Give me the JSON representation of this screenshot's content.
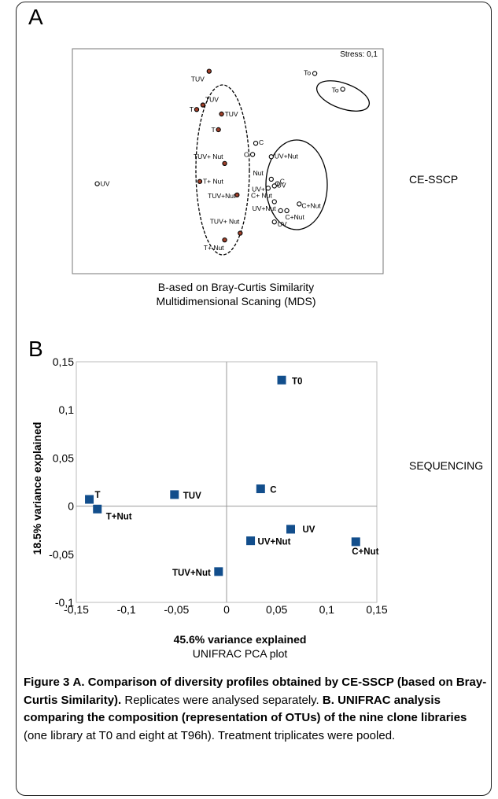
{
  "panel_a": {
    "label": "A",
    "stress": "Stress: 0,1",
    "side_label": "CE-SSCP",
    "caption_line1": "B-ased on Bray-Curtis Similarity",
    "caption_line2": "Multidimensional Scaning (MDS)"
  },
  "panel_b": {
    "label": "B",
    "side_label": "SEQUENCING",
    "xlabel": "45.6% variance explained",
    "ylabel": "18.5% variance explained",
    "subtitle": "UNIFRAC PCA plot"
  },
  "caption": {
    "fig_num": "Figure 3",
    "part1_bold": "A. Comparison of diversity profiles obtained by CE-SSCP (based on Bray-Curtis Similarity).",
    "part2": " Replicates were analysed separately. ",
    "part3_bold": "B. UNIFRAC analysis comparing the composition (representation of OTUs) of the nine clone libraries",
    "part4": " (one library at T0 and eight at T96h). Treatment triplicates were pooled."
  },
  "chart_data": [
    {
      "type": "scatter",
      "title": "",
      "annotation": "Stress: 0,1",
      "xlabel": "",
      "ylabel": "",
      "xlim": [
        0,
        100
      ],
      "ylim": [
        0,
        100
      ],
      "marker_colors": {
        "treated": "#a0402a",
        "control": "#ffffff"
      },
      "points": [
        {
          "label": "UV",
          "x": 8,
          "y": 40,
          "group": "control"
        },
        {
          "label": "To",
          "x": 78,
          "y": 89,
          "group": "control"
        },
        {
          "label": "To",
          "x": 87,
          "y": 82,
          "group": "control"
        },
        {
          "label": "TUV",
          "x": 44,
          "y": 90,
          "group": "treated"
        },
        {
          "label": "TUV",
          "x": 42,
          "y": 75,
          "group": "treated"
        },
        {
          "label": "T",
          "x": 40,
          "y": 73,
          "group": "treated"
        },
        {
          "label": "TUV",
          "x": 48,
          "y": 71,
          "group": "treated"
        },
        {
          "label": "T",
          "x": 47,
          "y": 64,
          "group": "treated"
        },
        {
          "label": "TUV+ Nut",
          "x": 49,
          "y": 49,
          "group": "treated"
        },
        {
          "label": "T+ Nut",
          "x": 41,
          "y": 41,
          "group": "treated"
        },
        {
          "label": "TUV+Nut",
          "x": 53,
          "y": 35,
          "group": "treated"
        },
        {
          "label": "TUV+ Nut",
          "x": 54,
          "y": 18,
          "group": "treated"
        },
        {
          "label": "T+ Nut",
          "x": 49,
          "y": 15,
          "group": "treated"
        },
        {
          "label": "C",
          "x": 59,
          "y": 58,
          "group": "control"
        },
        {
          "label": "C",
          "x": 58,
          "y": 53,
          "group": "control"
        },
        {
          "label": "UV+Nut",
          "x": 64,
          "y": 52,
          "group": "control"
        },
        {
          "label": "Nut",
          "x": 64,
          "y": 42,
          "group": "control"
        },
        {
          "label": "C",
          "x": 66,
          "y": 40,
          "group": "control"
        },
        {
          "label": "UV",
          "x": 65,
          "y": 39,
          "group": "control"
        },
        {
          "label": "UV+",
          "x": 63,
          "y": 38,
          "group": "control"
        },
        {
          "label": "C+ Nut",
          "x": 65,
          "y": 32,
          "group": "control"
        },
        {
          "label": "C+Nut",
          "x": 73,
          "y": 31,
          "group": "control"
        },
        {
          "label": "UV+Nut",
          "x": 67,
          "y": 28,
          "group": "control"
        },
        {
          "label": "C+Nut",
          "x": 69,
          "y": 28,
          "group": "control"
        },
        {
          "label": "UV",
          "x": 65,
          "y": 23,
          "group": "control"
        }
      ]
    },
    {
      "type": "scatter",
      "title": "",
      "subtitle": "UNIFRAC PCA plot",
      "xlabel": "45.6% variance explained",
      "ylabel": "18.5% variance explained",
      "xlim": [
        -0.15,
        0.15
      ],
      "ylim": [
        -0.1,
        0.15
      ],
      "xticks": [
        "-0,15",
        "-0,1",
        "-0,05",
        "0",
        "0,05",
        "0,1",
        "0,15"
      ],
      "yticks": [
        "-0,1",
        "-0,05",
        "0",
        "0,05",
        "0,1",
        "0,15"
      ],
      "marker_color": "#124e8c",
      "points": [
        {
          "label": "T0",
          "x": 0.055,
          "y": 0.131
        },
        {
          "label": "C",
          "x": 0.034,
          "y": 0.018
        },
        {
          "label": "TUV",
          "x": -0.052,
          "y": 0.012
        },
        {
          "label": "T",
          "x": -0.137,
          "y": 0.007
        },
        {
          "label": "T+Nut",
          "x": -0.129,
          "y": -0.003
        },
        {
          "label": "UV",
          "x": 0.064,
          "y": -0.024
        },
        {
          "label": "UV+Nut",
          "x": 0.024,
          "y": -0.036
        },
        {
          "label": "C+Nut",
          "x": 0.129,
          "y": -0.037
        },
        {
          "label": "TUV+Nut",
          "x": -0.008,
          "y": -0.068
        }
      ]
    }
  ]
}
